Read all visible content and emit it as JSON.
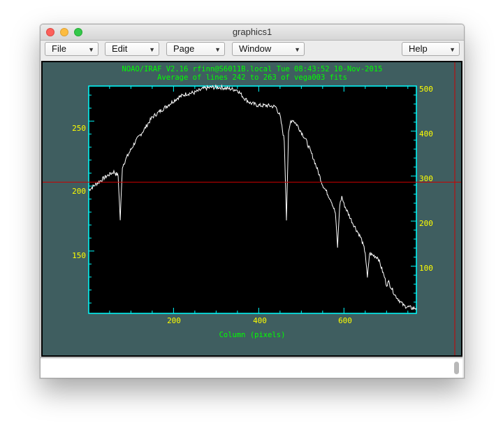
{
  "window": {
    "title": "graphics1"
  },
  "menu": {
    "file": "File",
    "edit": "Edit",
    "page": "Page",
    "window": "Window",
    "help": "Help"
  },
  "plot": {
    "header_line1": "NOAO/IRAF V2.16 rfinn@S6011B.local Tue 08:43:52 10-Nov-2015",
    "header_line2": "Average of lines 242 to 263 of vega003 fits",
    "xlabel": "Column (pixels)",
    "x_ticks": [
      "200",
      "400",
      "600"
    ],
    "y_left_ticks": [
      "150",
      "200",
      "250"
    ],
    "y_right_ticks": [
      "100",
      "200",
      "300",
      "400",
      "500"
    ]
  },
  "chart_data": {
    "type": "line",
    "title": "Average of lines 242 to 263 of vega003 fits",
    "xlabel": "Column (pixels)",
    "ylabel": "",
    "xlim": [
      1,
      770
    ],
    "ylim": [
      102,
      277
    ],
    "right_axis_ticks": [
      100,
      200,
      300,
      400,
      500
    ],
    "cursor_crosshair": {
      "x": 880,
      "y": 203
    },
    "colors": {
      "plot_bg": "#000000",
      "frame": "#00ffff",
      "header_text": "#00ff00",
      "tick_labels": "#ffff00",
      "trace": "#ffffff",
      "cursor": "#cc0000",
      "window_bg": "#3f5e60"
    },
    "series": [
      {
        "x": [
          1,
          20,
          40,
          60,
          70,
          75,
          80,
          90,
          110,
          130,
          150,
          170,
          190,
          210,
          230,
          250,
          270,
          290,
          310,
          330,
          350,
          365,
          380,
          400,
          420,
          440,
          450,
          460,
          465,
          470,
          475,
          480,
          490,
          510,
          530,
          550,
          570,
          580,
          585,
          590,
          595,
          600,
          620,
          640,
          650,
          655,
          660,
          680,
          695,
          700,
          705,
          720,
          740,
          760,
          770
        ],
        "y": [
          197,
          202,
          207,
          211,
          208,
          174,
          215,
          222,
          234,
          243,
          253,
          258,
          263,
          268,
          271,
          272,
          275,
          276,
          276,
          275,
          274,
          268,
          264,
          262,
          262,
          261,
          254,
          235,
          175,
          240,
          250,
          251,
          247,
          236,
          220,
          201,
          189,
          179,
          153,
          185,
          192,
          186,
          172,
          160,
          149,
          129,
          148,
          145,
          130,
          124,
          126,
          116,
          108,
          106,
          106
        ]
      }
    ]
  }
}
